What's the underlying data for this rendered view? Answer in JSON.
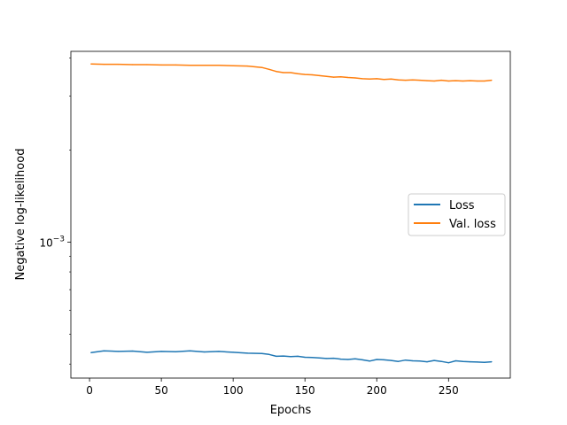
{
  "chart_data": {
    "type": "line",
    "xlabel": "Epochs",
    "ylabel": "Negative log-likelihood",
    "yscale": "log",
    "xlim": [
      -13,
      293
    ],
    "ylim": [
      0.00036,
      0.0042
    ],
    "xticks": [
      0,
      50,
      100,
      150,
      200,
      250
    ],
    "yticks": [
      {
        "value": 0.001,
        "base": "10",
        "exp": "−3"
      }
    ],
    "legend": {
      "placement": "center-right"
    },
    "grid": false,
    "x": [
      1,
      10,
      20,
      30,
      40,
      50,
      60,
      70,
      80,
      90,
      100,
      110,
      120,
      125,
      130,
      135,
      140,
      145,
      150,
      155,
      160,
      165,
      170,
      175,
      180,
      185,
      190,
      195,
      200,
      205,
      210,
      215,
      220,
      225,
      230,
      235,
      240,
      245,
      250,
      255,
      260,
      265,
      270,
      275,
      280
    ],
    "series": [
      {
        "name": "Loss",
        "color": "#1f77b4",
        "values": [
          0.000436,
          0.000442,
          0.00044,
          0.000441,
          0.000437,
          0.00044,
          0.000439,
          0.000442,
          0.000438,
          0.00044,
          0.000437,
          0.000434,
          0.000433,
          0.00043,
          0.000424,
          0.000425,
          0.000423,
          0.000424,
          0.000421,
          0.00042,
          0.000419,
          0.000417,
          0.000418,
          0.000415,
          0.000414,
          0.000416,
          0.000413,
          0.000409,
          0.000414,
          0.000413,
          0.000411,
          0.000408,
          0.000412,
          0.00041,
          0.000409,
          0.000407,
          0.000411,
          0.000408,
          0.000404,
          0.00041,
          0.000408,
          0.000407,
          0.000406,
          0.000405,
          0.000407
        ]
      },
      {
        "name": "Val. loss",
        "color": "#ff7f0e",
        "values": [
          0.00382,
          0.00381,
          0.00381,
          0.0038,
          0.0038,
          0.00379,
          0.00379,
          0.00378,
          0.00378,
          0.00378,
          0.00377,
          0.00376,
          0.00372,
          0.00367,
          0.00361,
          0.00358,
          0.00358,
          0.00355,
          0.00353,
          0.00352,
          0.0035,
          0.00348,
          0.00346,
          0.00347,
          0.00345,
          0.00344,
          0.00342,
          0.00341,
          0.00342,
          0.0034,
          0.00341,
          0.00339,
          0.00338,
          0.00339,
          0.00338,
          0.00337,
          0.00336,
          0.00338,
          0.00336,
          0.00337,
          0.00336,
          0.00337,
          0.00336,
          0.00336,
          0.00338
        ]
      }
    ]
  }
}
